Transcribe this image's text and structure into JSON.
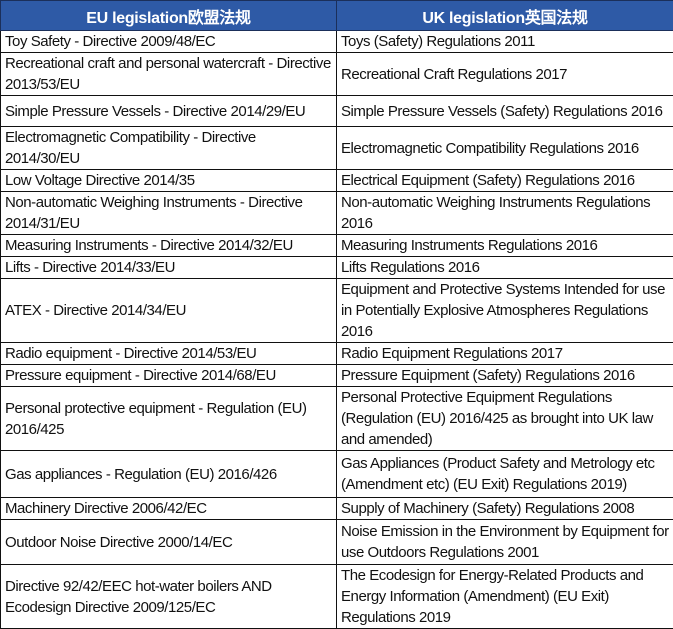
{
  "table": {
    "headers": [
      "EU legislation欧盟法规",
      "UK legislation英国法规"
    ],
    "rows": [
      [
        "Toy Safety - Directive 2009/48/EC",
        "Toys (Safety) Regulations 2011"
      ],
      [
        "Recreational craft and personal watercraft - Directive 2013/53/EU",
        "Recreational Craft Regulations 2017"
      ],
      [
        "Simple Pressure Vessels - Directive 2014/29/EU",
        "Simple Pressure Vessels (Safety) Regulations 2016"
      ],
      [
        "Electromagnetic Compatibility - Directive 2014/30/EU",
        "Electromagnetic Compatibility Regulations 2016"
      ],
      [
        "Low Voltage Directive 2014/35",
        "Electrical Equipment (Safety) Regulations 2016"
      ],
      [
        "Non-automatic Weighing Instruments - Directive 2014/31/EU",
        "Non-automatic Weighing Instruments Regulations 2016"
      ],
      [
        "Measuring Instruments - Directive 2014/32/EU",
        "Measuring Instruments Regulations 2016"
      ],
      [
        "Lifts - Directive 2014/33/EU",
        "Lifts Regulations 2016"
      ],
      [
        "ATEX - Directive 2014/34/EU",
        "Equipment and Protective Systems Intended for use in Potentially Explosive Atmospheres Regulations 2016"
      ],
      [
        "Radio equipment - Directive 2014/53/EU",
        "Radio Equipment Regulations 2017"
      ],
      [
        "Pressure equipment - Directive 2014/68/EU",
        "Pressure Equipment (Safety) Regulations 2016"
      ],
      [
        "Personal protective equipment - Regulation (EU) 2016/425",
        "Personal Protective Equipment Regulations (Regulation (EU) 2016/425 as brought into UK law and amended)"
      ],
      [
        "Gas appliances - Regulation (EU) 2016/426",
        "Gas Appliances (Product Safety and Metrology etc (Amendment etc) (EU Exit) Regulations 2019)"
      ],
      [
        "Machinery Directive 2006/42/EC",
        "Supply of Machinery (Safety) Regulations 2008"
      ],
      [
        "Outdoor Noise Directive 2000/14/EC",
        "Noise Emission in the Environment by Equipment for use Outdoors Regulations 2001"
      ],
      [
        "Directive 92/42/EEC hot-water boilers AND Ecodesign Directive 2009/125/EC",
        "The Ecodesign for Energy-Related Products and Energy Information (Amendment) (EU Exit) Regulations 2019"
      ]
    ]
  },
  "colors": {
    "header_bg": "#2e5aa6",
    "header_text": "#ffffff"
  }
}
